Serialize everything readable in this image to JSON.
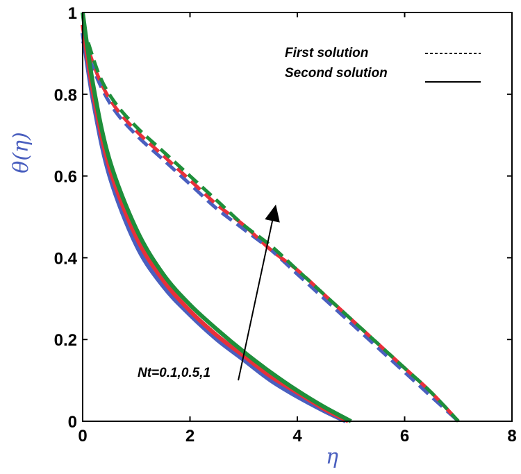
{
  "chart_data": {
    "type": "line",
    "title": "",
    "xlabel": "η",
    "ylabel": "θ(η)",
    "xlim": [
      0,
      8
    ],
    "ylim": [
      0,
      1
    ],
    "x_ticks": [
      "0",
      "2",
      "4",
      "6",
      "8"
    ],
    "y_ticks": [
      "0",
      "0.2",
      "0.4",
      "0.6",
      "0.8",
      "1"
    ],
    "legend": [
      {
        "label": "First solution",
        "style": "dashed"
      },
      {
        "label": "Second solution",
        "style": "solid"
      }
    ],
    "annotation": "Nt=0.1,0.5,1",
    "colors": {
      "Nt=0.1": "#4a5fbf",
      "Nt=0.5": "#e8303a",
      "Nt=1": "#1e8f3a",
      "axis": "#000000"
    },
    "series": [
      {
        "name": "First solution, Nt=0.1",
        "style": "dashed",
        "color": "#4a5fbf",
        "x": [
          0,
          0.3,
          0.6,
          1,
          1.5,
          2,
          2.5,
          3,
          3.5,
          4,
          4.5,
          5,
          5.5,
          6,
          6.5,
          7
        ],
        "y": [
          0.93,
          0.83,
          0.76,
          0.7,
          0.64,
          0.58,
          0.52,
          0.47,
          0.42,
          0.36,
          0.3,
          0.24,
          0.18,
          0.12,
          0.06,
          0
        ]
      },
      {
        "name": "First solution, Nt=0.5",
        "style": "dashed",
        "color": "#e8303a",
        "x": [
          0,
          0.3,
          0.6,
          1,
          1.5,
          2,
          2.5,
          3,
          3.5,
          4,
          4.5,
          5,
          5.5,
          6,
          6.5,
          7
        ],
        "y": [
          0.95,
          0.84,
          0.77,
          0.71,
          0.65,
          0.59,
          0.53,
          0.48,
          0.42,
          0.37,
          0.31,
          0.25,
          0.19,
          0.13,
          0.07,
          0
        ]
      },
      {
        "name": "First solution, Nt=1",
        "style": "dashed",
        "color": "#1e8f3a",
        "x": [
          0,
          0.3,
          0.6,
          1,
          1.5,
          2,
          2.5,
          3,
          3.5,
          4,
          4.5,
          5,
          5.5,
          6,
          6.5,
          7
        ],
        "y": [
          0.97,
          0.85,
          0.78,
          0.72,
          0.66,
          0.6,
          0.54,
          0.48,
          0.43,
          0.37,
          0.31,
          0.25,
          0.19,
          0.13,
          0.07,
          0
        ]
      },
      {
        "name": "Second solution, Nt=0.1",
        "style": "solid",
        "color": "#4a5fbf",
        "x": [
          0,
          0.2,
          0.5,
          1,
          1.5,
          2,
          2.5,
          3,
          3.5,
          4,
          4.5,
          4.9
        ],
        "y": [
          0.95,
          0.78,
          0.6,
          0.43,
          0.33,
          0.26,
          0.2,
          0.15,
          0.1,
          0.06,
          0.025,
          0
        ]
      },
      {
        "name": "Second solution, Nt=0.5",
        "style": "solid",
        "color": "#e8303a",
        "x": [
          0,
          0.2,
          0.5,
          1,
          1.5,
          2,
          2.5,
          3,
          3.5,
          4,
          4.5,
          4.95
        ],
        "y": [
          0.97,
          0.8,
          0.62,
          0.45,
          0.345,
          0.27,
          0.21,
          0.16,
          0.11,
          0.07,
          0.03,
          0
        ]
      },
      {
        "name": "Second solution, Nt=1",
        "style": "solid",
        "color": "#1e8f3a",
        "x": [
          0,
          0.2,
          0.5,
          1,
          1.5,
          2,
          2.5,
          3,
          3.5,
          4,
          4.5,
          5
        ],
        "y": [
          1.0,
          0.82,
          0.64,
          0.47,
          0.36,
          0.285,
          0.225,
          0.17,
          0.12,
          0.075,
          0.035,
          0
        ]
      }
    ],
    "arrow": {
      "from": [
        2.9,
        0.1
      ],
      "to": [
        3.6,
        0.53
      ]
    }
  }
}
